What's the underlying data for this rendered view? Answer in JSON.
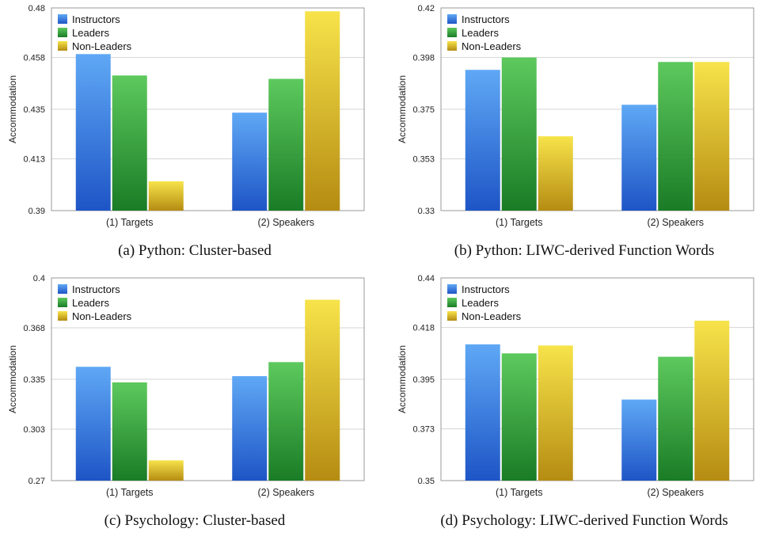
{
  "chart_data": [
    {
      "type": "bar",
      "caption": "(a) Python: Cluster-based",
      "ylabel": "Accommodation",
      "categories": [
        "(1) Targets",
        "(2) Speakers"
      ],
      "series": [
        {
          "name": "Instructors",
          "values": [
            0.4595,
            0.4335
          ]
        },
        {
          "name": "Leaders",
          "values": [
            0.45,
            0.4485
          ]
        },
        {
          "name": "Non-Leaders",
          "values": [
            0.403,
            0.4785
          ]
        }
      ],
      "ylim": [
        0.39,
        0.48
      ],
      "yticks": [
        "0.39",
        "0.413",
        "0.435",
        "0.458",
        "0.48"
      ],
      "legend": "top-left",
      "grid": true
    },
    {
      "type": "bar",
      "caption": "(b) Python: LIWC-derived Function Words",
      "ylabel": "Accommodation",
      "categories": [
        "(1) Targets",
        "(2) Speakers"
      ],
      "series": [
        {
          "name": "Instructors",
          "values": [
            0.3925,
            0.377
          ]
        },
        {
          "name": "Leaders",
          "values": [
            0.398,
            0.396
          ]
        },
        {
          "name": "Non-Leaders",
          "values": [
            0.363,
            0.396
          ]
        }
      ],
      "ylim": [
        0.33,
        0.42
      ],
      "yticks": [
        "0.33",
        "0.353",
        "0.375",
        "0.398",
        "0.42"
      ],
      "legend": "top-left",
      "grid": true
    },
    {
      "type": "bar",
      "caption": "(c) Psychology: Cluster-based",
      "ylabel": "Accommodation",
      "categories": [
        "(1) Targets",
        "(2) Speakers"
      ],
      "series": [
        {
          "name": "Instructors",
          "values": [
            0.343,
            0.337
          ]
        },
        {
          "name": "Leaders",
          "values": [
            0.333,
            0.346
          ]
        },
        {
          "name": "Non-Leaders",
          "values": [
            0.283,
            0.386
          ]
        }
      ],
      "ylim": [
        0.27,
        0.4
      ],
      "yticks": [
        "0.27",
        "0.303",
        "0.335",
        "0.368",
        "0.4"
      ],
      "legend": "top-left",
      "grid": true
    },
    {
      "type": "bar",
      "caption": "(d) Psychology: LIWC-derived Function Words",
      "ylabel": "Accommodation",
      "categories": [
        "(1) Targets",
        "(2) Speakers"
      ],
      "series": [
        {
          "name": "Instructors",
          "values": [
            0.4105,
            0.386
          ]
        },
        {
          "name": "Leaders",
          "values": [
            0.4065,
            0.405
          ]
        },
        {
          "name": "Non-Leaders",
          "values": [
            0.41,
            0.421
          ]
        }
      ],
      "ylim": [
        0.35,
        0.44
      ],
      "yticks": [
        "0.35",
        "0.373",
        "0.395",
        "0.418",
        "0.44"
      ],
      "legend": "top-left",
      "grid": true
    }
  ],
  "colors": {
    "Instructors": [
      "#5fa8f5",
      "#1e55c6"
    ],
    "Leaders": [
      "#5dc95d",
      "#1a7c26"
    ],
    "Non-Leaders": [
      "#f7e34a",
      "#b58c12"
    ]
  }
}
